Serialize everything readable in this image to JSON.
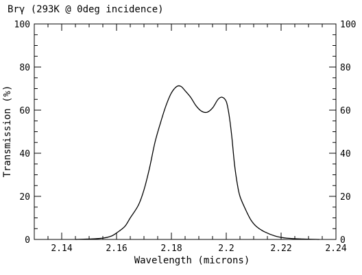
{
  "chart_data": {
    "type": "line",
    "title": "Brγ (293K @ 0deg incidence)",
    "xlabel": "Wavelength (microns)",
    "ylabel": "Transmission (%)",
    "xlim": [
      2.13,
      2.24
    ],
    "ylim": [
      0,
      100
    ],
    "x_ticks": [
      "2.14",
      "2.16",
      "2.18",
      "2.2",
      "2.22",
      "2.24"
    ],
    "y_ticks": [
      "0",
      "20",
      "40",
      "60",
      "80",
      "100"
    ],
    "x_tick_values": [
      2.14,
      2.16,
      2.18,
      2.2,
      2.22,
      2.24
    ],
    "y_tick_values": [
      0,
      20,
      40,
      60,
      80,
      100
    ],
    "grid": false,
    "series": [
      {
        "x": [
          2.145,
          2.15,
          2.155,
          2.158,
          2.16,
          2.163,
          2.165,
          2.168,
          2.17,
          2.172,
          2.174,
          2.176,
          2.178,
          2.18,
          2.182,
          2.1835,
          2.185,
          2.187,
          2.189,
          2.191,
          2.193,
          2.195,
          2.197,
          2.1985,
          2.2,
          2.201,
          2.202,
          2.203,
          2.204,
          2.205,
          2.207,
          2.209,
          2.211,
          2.214,
          2.218,
          2.222,
          2.228,
          2.234
        ],
        "y": [
          0,
          0.2,
          0.6,
          1.5,
          3,
          6,
          10,
          16,
          23,
          33,
          45,
          54,
          62,
          68,
          71,
          71,
          69,
          66,
          62,
          59.5,
          59,
          61,
          65,
          66,
          64,
          58,
          48,
          35,
          26,
          20,
          14,
          9,
          6,
          3.5,
          1.5,
          0.6,
          0.2,
          0
        ]
      }
    ]
  }
}
